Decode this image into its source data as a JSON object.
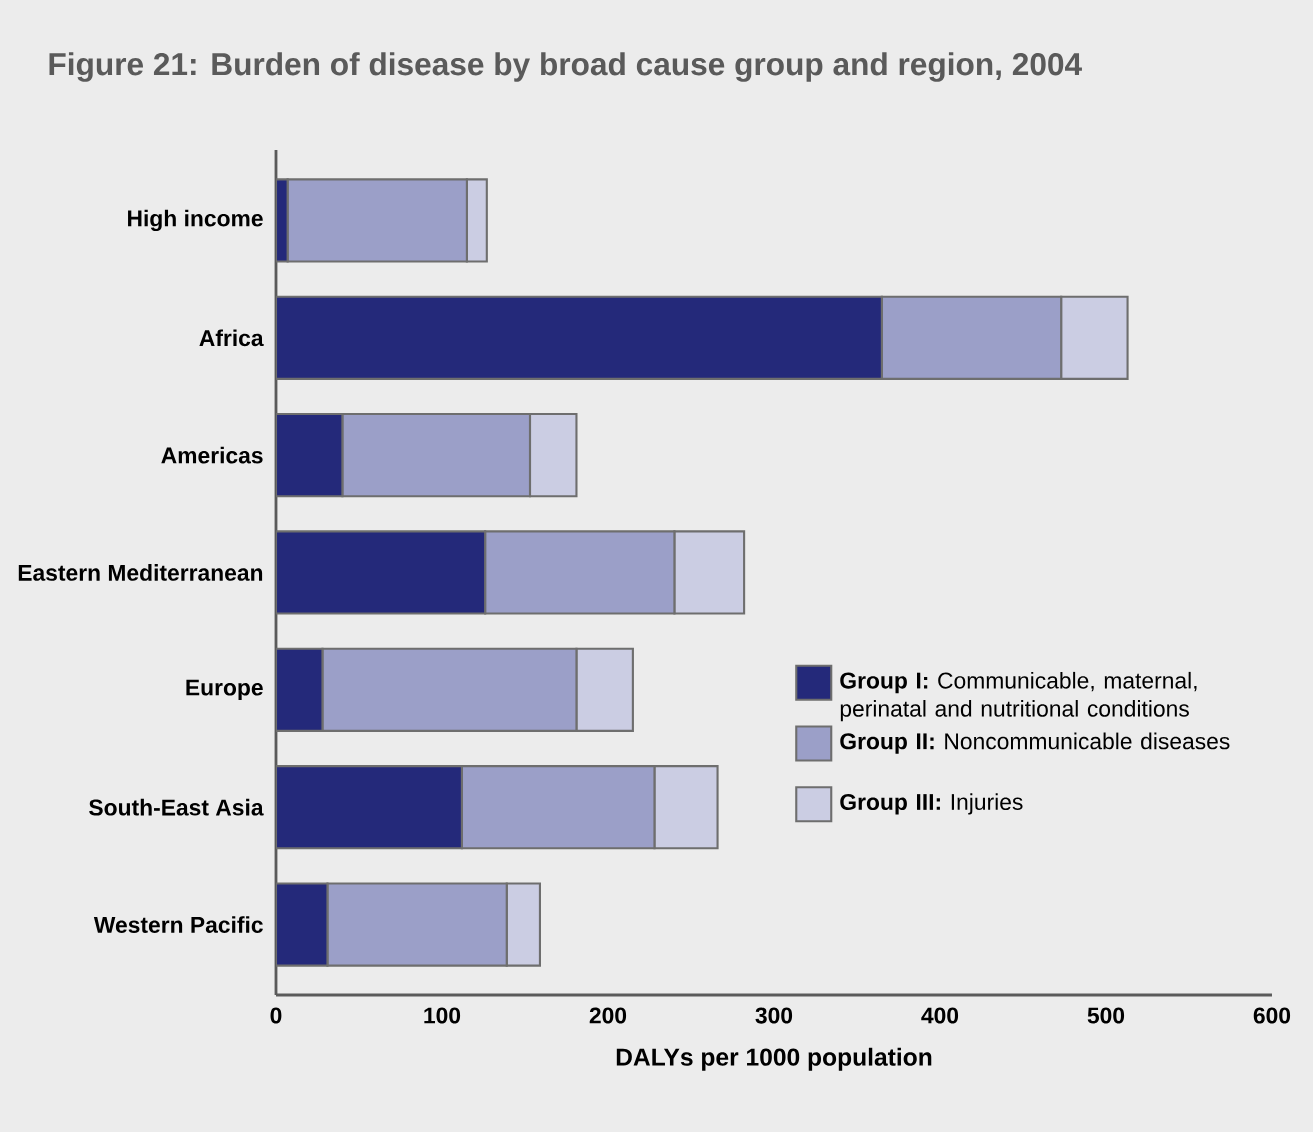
{
  "chart_data": {
    "type": "bar",
    "orientation": "horizontal",
    "stacked": true,
    "title": "Figure 21: Burden of disease by broad cause group and region, 2004",
    "xlabel": "DALYs per 1000 population",
    "categories": [
      "High income",
      "Africa",
      "Americas",
      "Eastern Mediterranean",
      "Europe",
      "South-East Asia",
      "Western Pacific"
    ],
    "series": [
      {
        "name": "**Group I:** Communicable, maternal, perinatal and nutritional conditions",
        "color": "#24297a",
        "values": [
          7,
          365,
          40,
          126,
          28,
          112,
          31
        ]
      },
      {
        "name": "**Group II:** Noncommunicable diseases",
        "color": "#9b9fc8",
        "values": [
          108,
          108,
          113,
          114,
          153,
          116,
          108
        ]
      },
      {
        "name": "**Group III:** Injuries",
        "color": "#cbcde3",
        "values": [
          12,
          40,
          28,
          42,
          34,
          38,
          20
        ]
      }
    ],
    "xlim": [
      0,
      600
    ],
    "xticks": [
      0,
      100,
      200,
      300,
      400,
      500,
      600
    ],
    "grid": false,
    "legend": "right"
  }
}
